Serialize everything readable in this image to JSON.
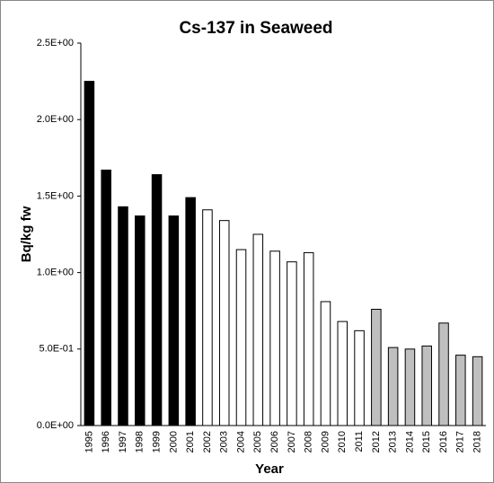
{
  "chart_data": {
    "type": "bar",
    "title": "Cs-137 in Seaweed",
    "x_label": "Year",
    "y_label": "Bq/kg fw",
    "categories": [
      "1995",
      "1996",
      "1997",
      "1998",
      "1999",
      "2000",
      "2001",
      "2002",
      "2003",
      "2004",
      "2005",
      "2006",
      "2007",
      "2008",
      "2009",
      "2010",
      "2011",
      "2012",
      "2013",
      "2014",
      "2015",
      "2016",
      "2017",
      "2018"
    ],
    "values": [
      2.25,
      1.67,
      1.43,
      1.37,
      1.64,
      1.37,
      1.49,
      1.41,
      1.34,
      1.15,
      1.25,
      1.14,
      1.07,
      1.13,
      0.81,
      0.68,
      0.62,
      0.76,
      0.51,
      0.5,
      0.52,
      0.67,
      0.46,
      0.45
    ],
    "colors": [
      "#000000",
      "#000000",
      "#000000",
      "#000000",
      "#000000",
      "#000000",
      "#000000",
      "#ffffff",
      "#ffffff",
      "#ffffff",
      "#ffffff",
      "#ffffff",
      "#ffffff",
      "#ffffff",
      "#ffffff",
      "#ffffff",
      "#ffffff",
      "#bfbfbf",
      "#bfbfbf",
      "#bfbfbf",
      "#bfbfbf",
      "#bfbfbf",
      "#bfbfbf",
      "#bfbfbf"
    ],
    "ylim": [
      0,
      2.5
    ],
    "yticks": [
      {
        "value": 0,
        "label": "0.0E+00"
      },
      {
        "value": 0.5,
        "label": "5.0E-01"
      },
      {
        "value": 1,
        "label": "1.0E+00"
      },
      {
        "value": 1.5,
        "label": "1.5E+00"
      },
      {
        "value": 2,
        "label": "2.0E+00"
      },
      {
        "value": 2.5,
        "label": "2.5E+00"
      }
    ],
    "grid": false
  }
}
